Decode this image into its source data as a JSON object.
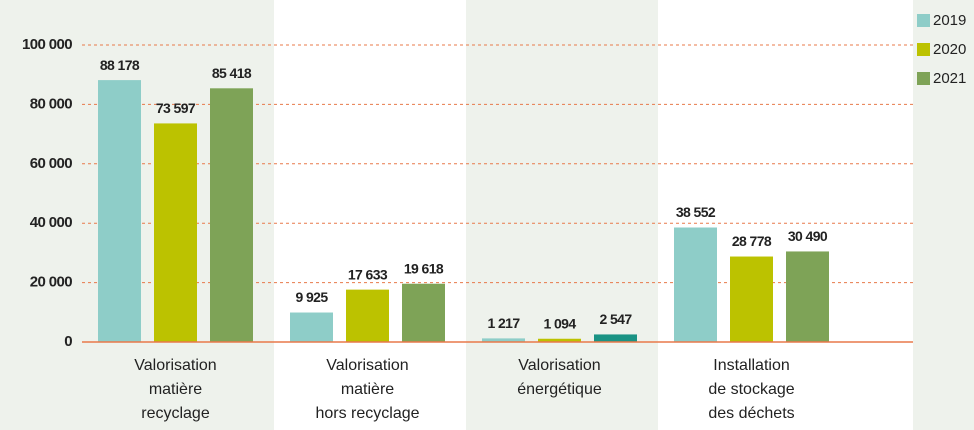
{
  "chart_data": {
    "type": "bar",
    "categories": [
      [
        "Valorisation",
        "matière",
        "recyclage"
      ],
      [
        "Valorisation",
        "matière",
        "hors recyclage"
      ],
      [
        "Valorisation",
        "énergétique"
      ],
      [
        "Installation",
        "de stockage",
        "des déchets"
      ]
    ],
    "series": [
      {
        "name": "2019",
        "color": "#8ecdc8",
        "values": [
          88178,
          9925,
          1217,
          38552
        ],
        "value_labels": [
          "88 178",
          "9 925",
          "1 217",
          "38 552"
        ]
      },
      {
        "name": "2020",
        "color": "#bcc200",
        "values": [
          73597,
          17633,
          1094,
          28778
        ],
        "value_labels": [
          "73 597",
          "17 633",
          "1 094",
          "28 778"
        ]
      },
      {
        "name": "2021",
        "color": "#7ea357",
        "colors": [
          "#7ea357",
          "#7ea357",
          "#1a9384",
          "#7ea357"
        ],
        "values": [
          85418,
          19618,
          2547,
          30490
        ],
        "value_labels": [
          "85 418",
          "19 618",
          "2 547",
          "30 490"
        ]
      }
    ],
    "ylim": [
      0,
      100000
    ],
    "yticks": [
      0,
      {
        "value": 20000,
        "label": "20 000"
      },
      {
        "value": 40000,
        "label": "40 000"
      },
      {
        "value": 60000,
        "label": "60 000"
      },
      {
        "value": 80000,
        "label": "80 000"
      },
      {
        "value": 100000,
        "label": "100 000"
      }
    ],
    "grid": true,
    "legend": "top-right"
  }
}
